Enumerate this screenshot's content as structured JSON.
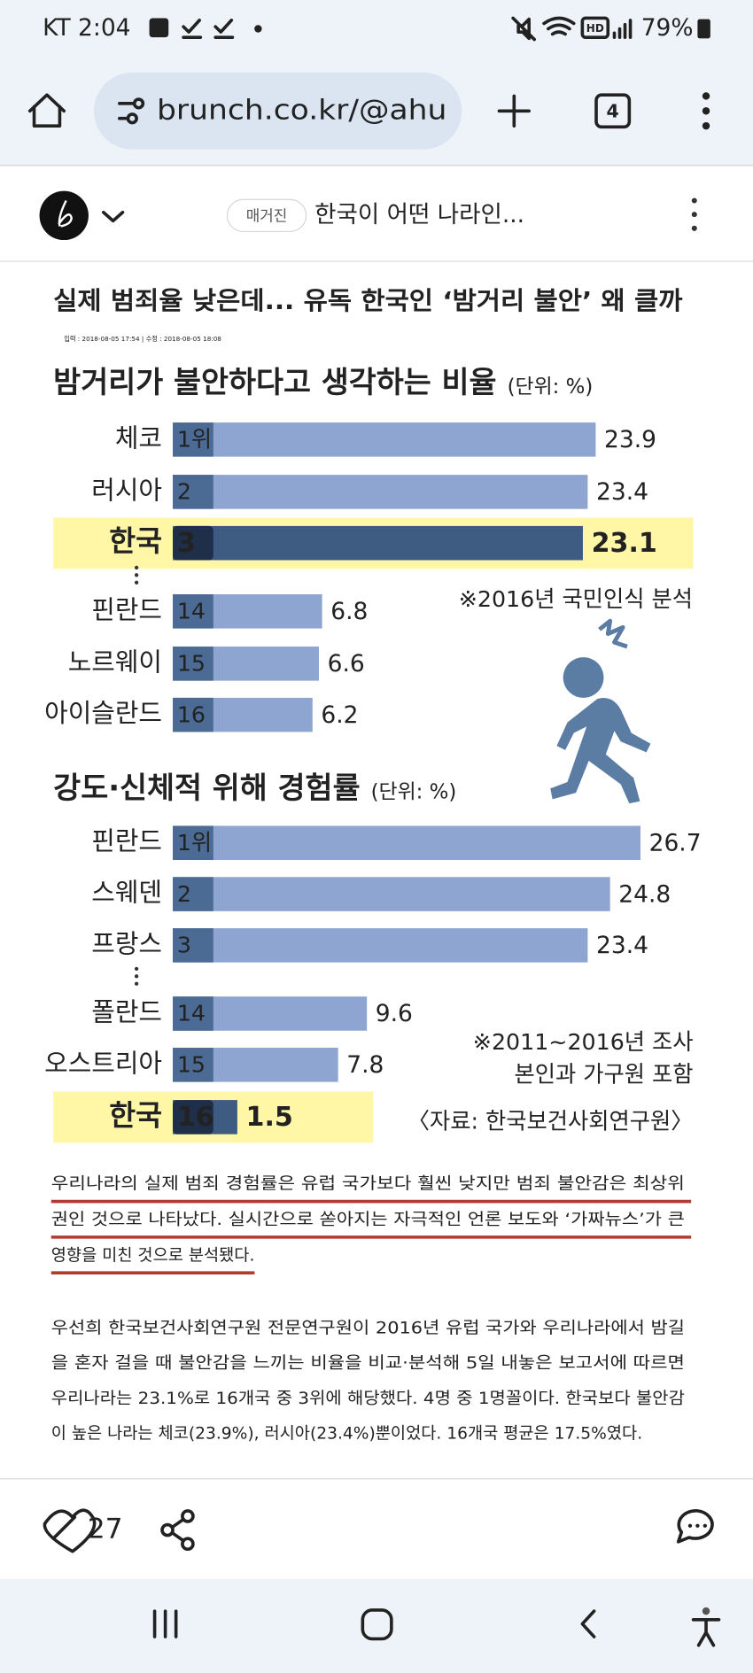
{
  "status_bar": {
    "carrier_time": "KT 2:04",
    "battery": "79%"
  },
  "browser": {
    "url": "brunch.co.kr/@ahu",
    "tab_count": "4"
  },
  "article_header": {
    "tag": "매거진",
    "title": "한국이 어떤 나라인..."
  },
  "infographic": {
    "headline": "실제 범죄율 낮은데... 유독 한국인 ‘밤거리 불안’ 왜 클까",
    "timestamp": "입력 : 2018-08-05 17:54 | 수정 : 2018-08-05 18:08",
    "charts": [
      {
        "type": "bar",
        "title": "밤거리가 불안하다고 생각하는 비율",
        "unit": "(단위: %)",
        "categories": [
          "체코",
          "러시아",
          "한국",
          "핀란드",
          "노르웨이",
          "아이슬란드"
        ],
        "ranks": [
          "1위",
          "2",
          "3",
          "14",
          "15",
          "16"
        ],
        "values": [
          23.9,
          23.4,
          23.1,
          6.8,
          6.6,
          6.2
        ],
        "highlighted": [
          false,
          false,
          true,
          false,
          false,
          false
        ],
        "notes": [
          "※2016년 국민인식 분석"
        ]
      },
      {
        "type": "bar",
        "title": "강도·신체적 위해 경험률",
        "unit": "(단위: %)",
        "categories": [
          "핀란드",
          "스웨덴",
          "프랑스",
          "폴란드",
          "오스트리아",
          "한국"
        ],
        "ranks": [
          "1위",
          "2",
          "3",
          "14",
          "15",
          "16"
        ],
        "values": [
          26.7,
          24.8,
          23.4,
          9.6,
          7.8,
          1.5
        ],
        "highlighted": [
          false,
          false,
          false,
          false,
          false,
          true
        ],
        "notes": [
          "※2011~2016년 조사",
          "본인과 가구원 포함",
          "〈자료: 한국보건사회연구원〉"
        ]
      }
    ],
    "bar_color": "#8ea5d2",
    "rank_color": "#4b6b95",
    "highlight_bar_color": "#3e5b82",
    "highlight_rank_color": "#1f2f4a",
    "highlight_background": "#fff6a6"
  },
  "paragraphs": [
    {
      "lines": [
        "우리나라의 실제 범죄 경험률은 유럽 국가보다 훨씬 낮지만 범죄 불안감은 최상위",
        "권인 것으로 나타났다. 실시간으로 쏟아지는 자극적인 언론 보도와 ‘가짜뉴스’가 큰",
        "영향을 미친 것으로 분석됐다."
      ]
    },
    {
      "lines": [
        "우선희 한국보건사회연구원 전문연구원이 2016년 유럽 국가와 우리나라에서 밤길",
        "을 혼자 걸을 때 불안감을 느끼는 비율을 비교·분석해 5일 내놓은 보고서에 따르면",
        "우리나라는 23.1%로 16개국 중 3위에 해당했다. 4명 중 1명꼴이다. 한국보다 불안감",
        "이 높은 나라는 체코(23.9%), 러시아(23.4%)뿐이었다. 16개국 평균은 17.5%였다."
      ]
    }
  ],
  "action_bar": {
    "likes": "27"
  }
}
